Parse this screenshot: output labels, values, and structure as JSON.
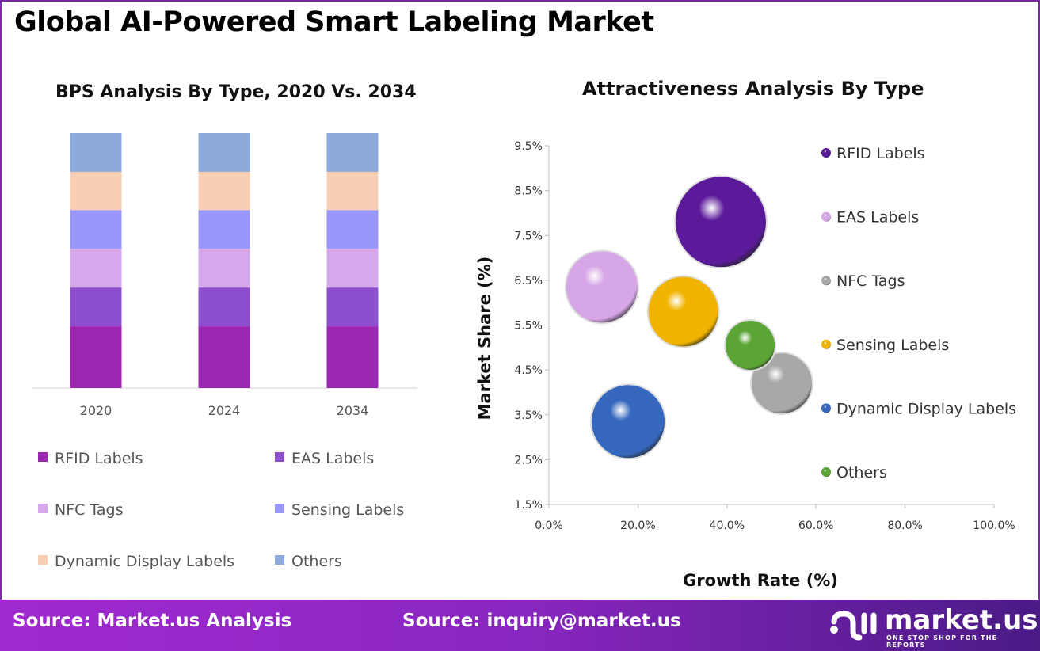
{
  "title": "Global AI-Powered Smart Labeling Market",
  "chart_data": [
    {
      "type": "bar",
      "stacked": true,
      "title": "BPS Analysis By Type, 2020 Vs. 2034",
      "categories": [
        "2020",
        "2024",
        "2034"
      ],
      "series": [
        {
          "name": "RFID Labels",
          "color": "#9b27b0",
          "values": [
            24.2,
            24.2,
            24.2
          ]
        },
        {
          "name": "EAS Labels",
          "color": "#8e4fcf",
          "values": [
            15.2,
            15.2,
            15.2
          ]
        },
        {
          "name": "NFC Tags",
          "color": "#d4a8ea",
          "values": [
            15.2,
            15.2,
            15.2
          ]
        },
        {
          "name": "Sensing Labels",
          "color": "#9a97fb",
          "values": [
            15.2,
            15.2,
            15.2
          ]
        },
        {
          "name": "Dynamic Display Labels",
          "color": "#f8cfb2",
          "values": [
            15.0,
            15.0,
            15.0
          ]
        },
        {
          "name": "Others",
          "color": "#8eaadc",
          "values": [
            15.2,
            15.2,
            15.2
          ]
        }
      ],
      "ylim": [
        0,
        100
      ],
      "legend": "bottom"
    },
    {
      "type": "scatter",
      "subtype": "bubble",
      "title": "Attractiveness Analysis By Type",
      "xlabel": "Growth Rate (%)",
      "ylabel": "Market Share (%)",
      "xlim": [
        0,
        100
      ],
      "ylim": [
        1.5,
        9.5
      ],
      "xticks": [
        "0.0%",
        "20.0%",
        "40.0%",
        "60.0%",
        "80.0%",
        "100.0%"
      ],
      "yticks": [
        "1.5%",
        "2.5%",
        "3.5%",
        "4.5%",
        "5.5%",
        "6.5%",
        "7.5%",
        "8.5%",
        "9.5%"
      ],
      "legend": "right",
      "points": [
        {
          "name": "RFID Labels",
          "x": 38.6,
          "y": 7.8,
          "size": 58,
          "color": "#5a1a9a"
        },
        {
          "name": "EAS Labels",
          "x": 11.9,
          "y": 6.35,
          "size": 46,
          "color": "#d6a6e6"
        },
        {
          "name": "NFC Tags",
          "x": 52.3,
          "y": 4.2,
          "size": 39,
          "color": "#a8a8a8"
        },
        {
          "name": "Sensing Labels",
          "x": 30.2,
          "y": 5.8,
          "size": 45,
          "color": "#f0b400"
        },
        {
          "name": "Dynamic Display Labels",
          "x": 17.8,
          "y": 3.35,
          "size": 47,
          "color": "#3568bd"
        },
        {
          "name": "Others",
          "x": 45.2,
          "y": 5.05,
          "size": 32,
          "color": "#5aa536"
        }
      ]
    }
  ],
  "footer": {
    "source1": "Source: Market.us Analysis",
    "source2": "Source: inquiry@market.us",
    "logo_name": "market.us",
    "logo_tagline": "ONE STOP SHOP FOR THE REPORTS"
  }
}
